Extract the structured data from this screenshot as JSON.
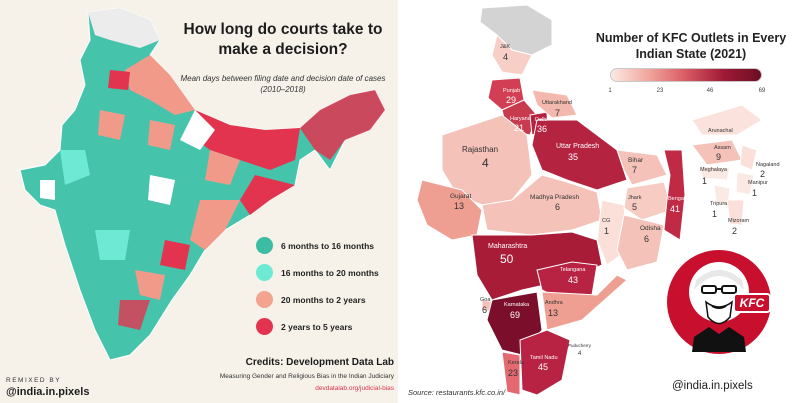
{
  "left_panel": {
    "title": "How long do courts take to make a decision?",
    "subtitle": "Mean days between filing date and decision date of cases (2010–2018)",
    "legend": [
      {
        "label": "6 months to 16 months",
        "color": "#3cbca4"
      },
      {
        "label": "16 months to 20 months",
        "color": "#6ee9d4"
      },
      {
        "label": "20 months to 2 years",
        "color": "#f4a391"
      },
      {
        "label": "2 years to 5 years",
        "color": "#e3344f"
      }
    ],
    "credits_title": "Credits: Development Data Lab",
    "credits_subtitle": "Measuring Gender and Religious Bias in the Indian Judiciary",
    "credits_link": "devdatalab.org/judicial-bias",
    "remixed_by": "REMIXED BY",
    "handle": "@india.in.pixels"
  },
  "right_panel": {
    "title": "Number of KFC Outlets in Every Indian State (2021)",
    "scale_ticks": [
      "1",
      "23",
      "46",
      "69"
    ],
    "source": "Source: restaurants.kfc.co.in/",
    "handle": "@india.in.pixels",
    "logo_text": "KFC",
    "states": [
      {
        "name": "J&K",
        "value": "4"
      },
      {
        "name": "Punjab",
        "value": "29"
      },
      {
        "name": "Uttarakhand",
        "value": "7"
      },
      {
        "name": "Haryana",
        "value": "21"
      },
      {
        "name": "Delhi",
        "value": "36"
      },
      {
        "name": "Rajasthan",
        "value": "4"
      },
      {
        "name": "Uttar Pradesh",
        "value": "35"
      },
      {
        "name": "Bihar",
        "value": "7"
      },
      {
        "name": "Arunachal",
        "value": ""
      },
      {
        "name": "Assam",
        "value": "9"
      },
      {
        "name": "Nagaland",
        "value": "2"
      },
      {
        "name": "Meghalaya",
        "value": "1"
      },
      {
        "name": "Manipur",
        "value": "1"
      },
      {
        "name": "Tripura",
        "value": "1"
      },
      {
        "name": "Mizoram",
        "value": "2"
      },
      {
        "name": "Gujarat",
        "value": "13"
      },
      {
        "name": "Madhya Pradesh",
        "value": "6"
      },
      {
        "name": "Jhark",
        "value": "5"
      },
      {
        "name": "CG",
        "value": "1"
      },
      {
        "name": "Bengal",
        "value": "41"
      },
      {
        "name": "Odisha",
        "value": "6"
      },
      {
        "name": "Maharashtra",
        "value": "50"
      },
      {
        "name": "Telangana",
        "value": "43"
      },
      {
        "name": "Goa",
        "value": "6"
      },
      {
        "name": "Karnataka",
        "value": "69"
      },
      {
        "name": "Andhra",
        "value": "13"
      },
      {
        "name": "Puducherry",
        "value": "4"
      },
      {
        "name": "Kerala",
        "value": "23"
      },
      {
        "name": "Tamil Nadu",
        "value": "45"
      }
    ]
  }
}
